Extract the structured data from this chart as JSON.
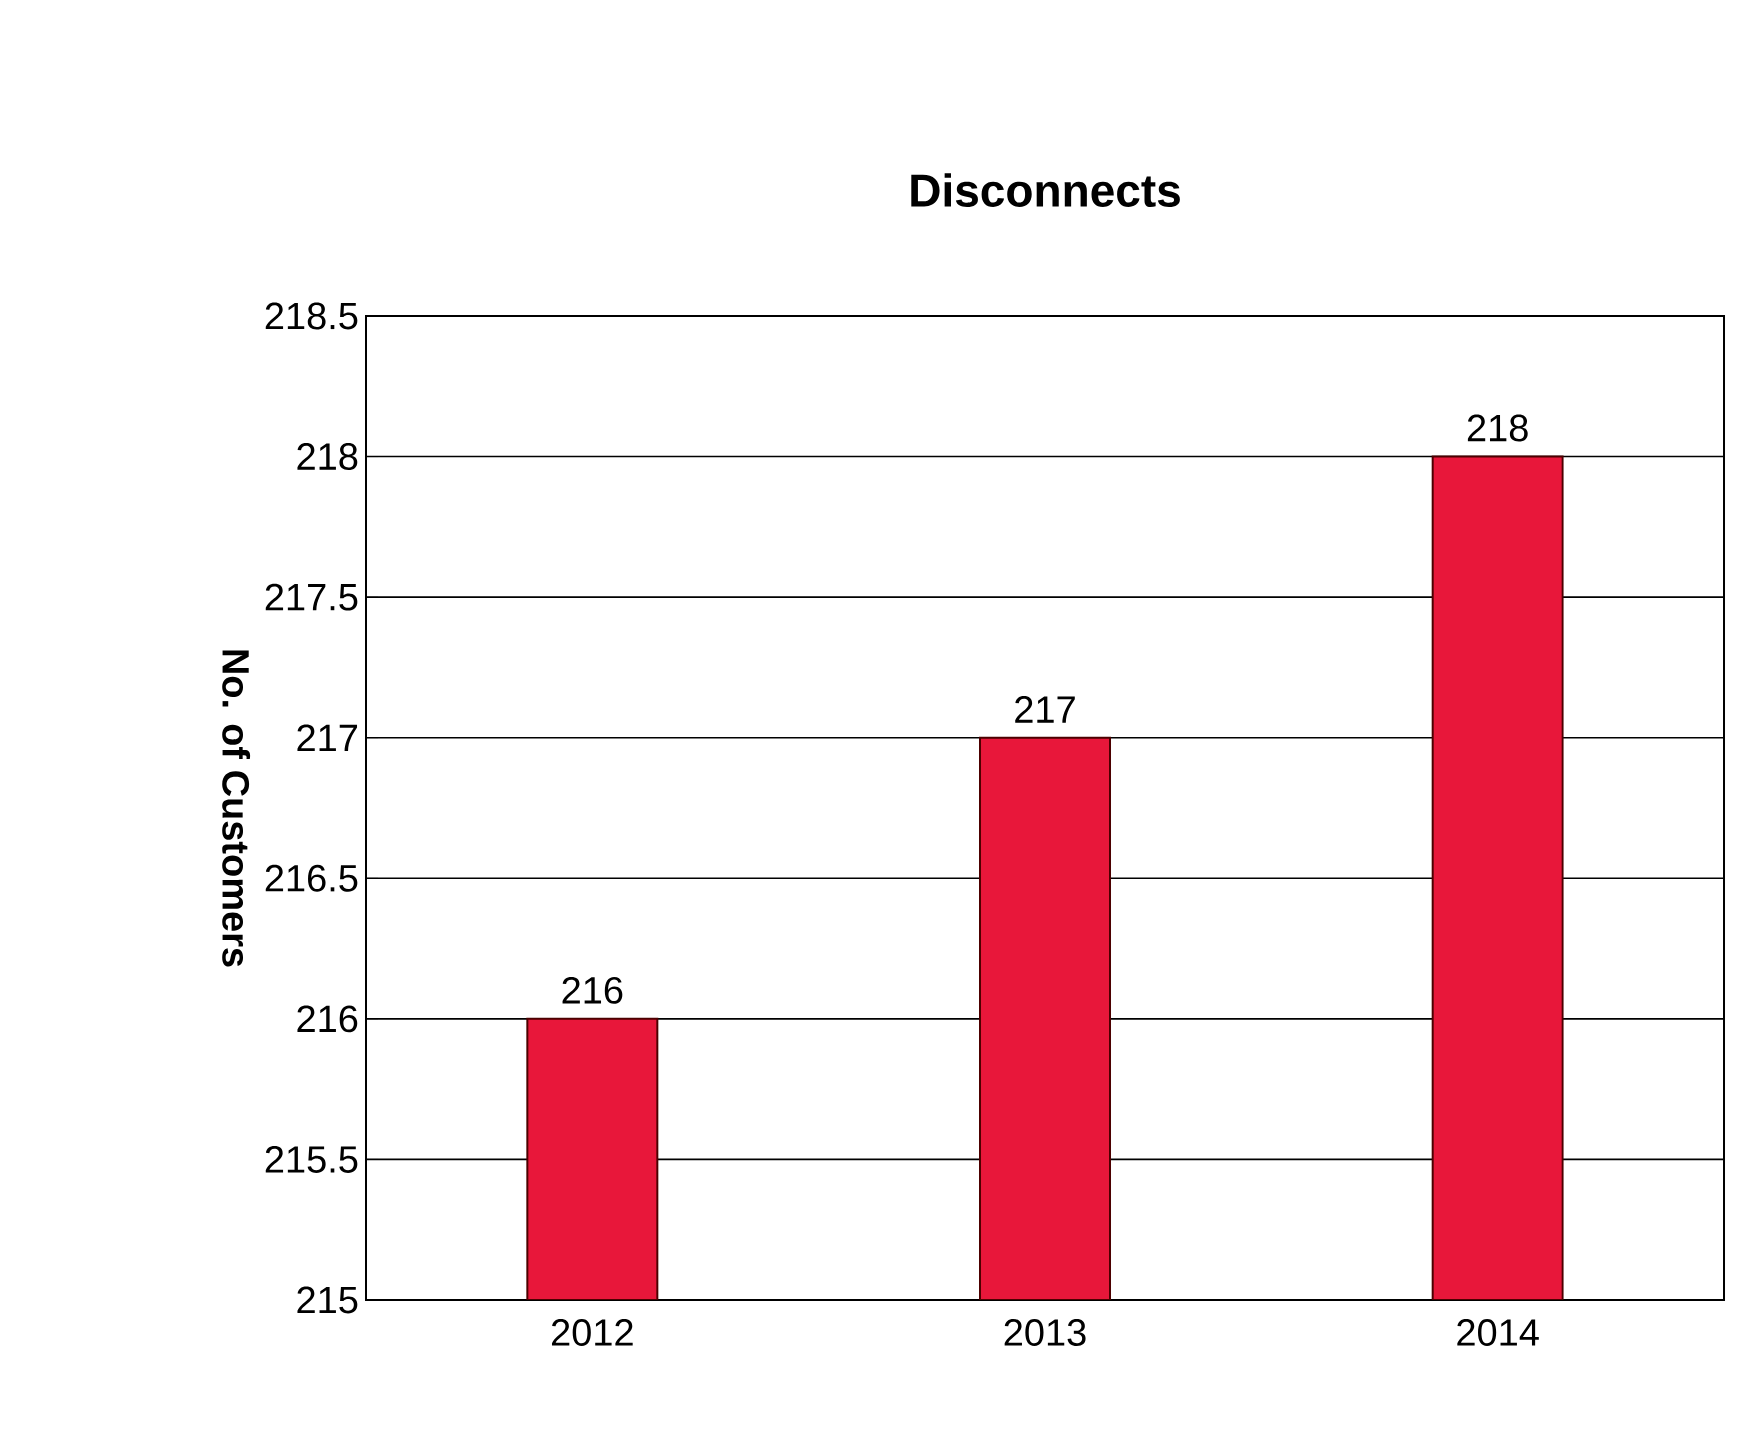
{
  "chart_data": {
    "type": "bar",
    "title": "Disconnects",
    "ylabel": "No. of Customers",
    "categories": [
      "2012",
      "2013",
      "2014"
    ],
    "values": [
      216,
      217,
      218
    ],
    "color": "#e8173a",
    "ylim": [
      215,
      218.5
    ],
    "yticks": [
      215,
      215.5,
      216,
      216.5,
      217,
      217.5,
      218,
      218.5
    ],
    "grid": "y",
    "data_labels": true
  }
}
